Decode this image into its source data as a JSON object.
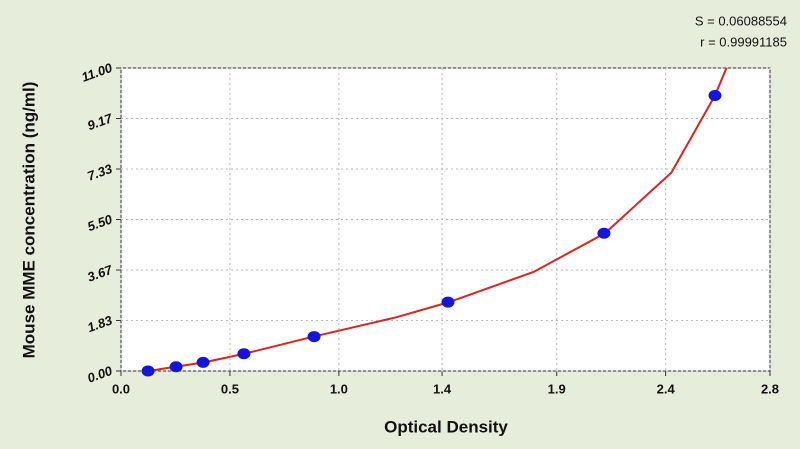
{
  "chart_data": {
    "type": "scatter",
    "xlabel": "Optical Density",
    "ylabel": "Mouse MME concentration (ng/ml)",
    "annotations": [
      "S = 0.06088554",
      "r = 0.99991185"
    ],
    "series": [
      {
        "color": "#1414e0",
        "x": [
          0.118,
          0.24,
          0.358,
          0.536,
          0.842,
          1.426,
          2.106,
          2.59
        ],
        "values": [
          0,
          0.156,
          0.3125,
          0.625,
          1.25,
          2.5,
          5,
          10
        ]
      }
    ],
    "fit": {
      "color": "#e3221c",
      "x": [
        0.12,
        0.24,
        0.36,
        0.54,
        0.84,
        1.2,
        1.43,
        1.8,
        2.11,
        2.4,
        2.59,
        2.66
      ],
      "values": [
        0,
        0.16,
        0.31,
        0.63,
        1.25,
        1.95,
        2.5,
        3.6,
        5.0,
        7.2,
        10.0,
        11.4
      ]
    },
    "xlim": [
      0,
      2.83
    ],
    "xticks": [
      {
        "value": 0,
        "label": "0.0"
      },
      {
        "value": 0.475,
        "label": "0.5"
      },
      {
        "value": 0.95,
        "label": "1.0"
      },
      1.4,
      1.9,
      {
        "value": 2.375,
        "label": "2.4"
      },
      {
        "value": 2.83,
        "label": "2.8"
      }
    ],
    "ylim": [
      0,
      11
    ],
    "yticks": [
      {
        "value": 0,
        "label": "0.00"
      },
      {
        "value": 1.8333,
        "label": "1.83"
      },
      {
        "value": 3.6667,
        "label": "3.67"
      },
      {
        "value": 5.5,
        "label": "5.50"
      },
      {
        "value": 7.3333,
        "label": "7.33"
      },
      {
        "value": 9.1667,
        "label": "9.17"
      },
      {
        "value": 11,
        "label": "11.00"
      }
    ],
    "grid": true
  }
}
